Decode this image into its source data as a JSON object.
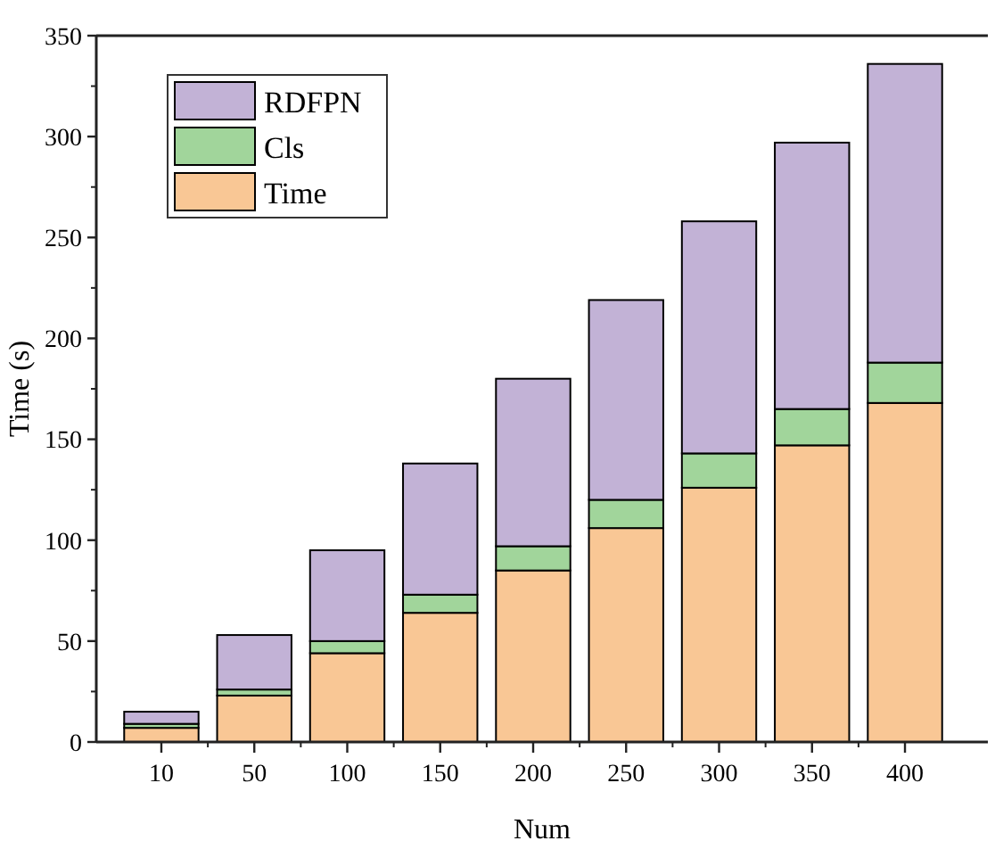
{
  "chart_data": {
    "type": "bar",
    "xlabel": "Num",
    "ylabel": "Time (s)",
    "categories": [
      "10",
      "50",
      "100",
      "150",
      "200",
      "250",
      "300",
      "350",
      "400"
    ],
    "stacked": true,
    "series": [
      {
        "name": "Time",
        "color": "#f9c795",
        "values": [
          7,
          23,
          44,
          64,
          85,
          106,
          126,
          147,
          168
        ]
      },
      {
        "name": "Cls",
        "color": "#a1d59b",
        "values": [
          2,
          3,
          6,
          9,
          12,
          14,
          17,
          18,
          20
        ]
      },
      {
        "name": "RDFPN",
        "color": "#c2b2d6",
        "values": [
          6,
          27,
          45,
          65,
          83,
          99,
          115,
          132,
          148
        ]
      }
    ],
    "ylim": [
      0,
      350
    ],
    "yticks": [
      0,
      50,
      100,
      150,
      200,
      250,
      300,
      350
    ],
    "grid": false,
    "legend": "top left"
  }
}
